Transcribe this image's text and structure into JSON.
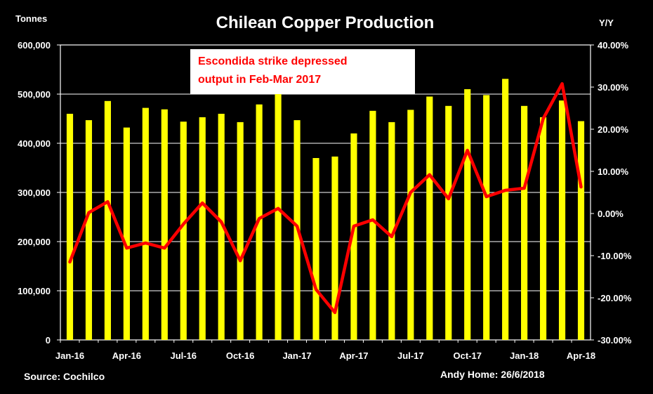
{
  "chart_data": {
    "type": "bar",
    "title": "Chilean Copper Production",
    "ylabel_left": "Tonnes",
    "ylabel_right": "Y/Y",
    "source": "Source: Cochilco",
    "credit": "Andy Home: 26/6/2018",
    "annotation": [
      "Escondida strike depressed",
      "output in Feb-Mar 2017"
    ],
    "x_tick_labels": [
      "Jan-16",
      "Apr-16",
      "Jul-16",
      "Oct-16",
      "Jan-17",
      "Apr-17",
      "Jul-17",
      "Oct-17",
      "Jan-18",
      "Apr-18"
    ],
    "y_left_ticks": [
      "0",
      "100,000",
      "200,000",
      "300,000",
      "400,000",
      "500,000",
      "600,000"
    ],
    "y_right_ticks": [
      "-30.00%",
      "-20.00%",
      "-10.00%",
      "0.00%",
      "10.00%",
      "20.00%",
      "30.00%",
      "40.00%"
    ],
    "ylim_left": [
      0,
      600000
    ],
    "ylim_right": [
      -30,
      40
    ],
    "categories": [
      "Jan-16",
      "Feb-16",
      "Mar-16",
      "Apr-16",
      "May-16",
      "Jun-16",
      "Jul-16",
      "Aug-16",
      "Sep-16",
      "Oct-16",
      "Nov-16",
      "Dec-16",
      "Jan-17",
      "Feb-17",
      "Mar-17",
      "Apr-17",
      "May-17",
      "Jun-17",
      "Jul-17",
      "Aug-17",
      "Sep-17",
      "Oct-17",
      "Nov-17",
      "Dec-17",
      "Jan-18",
      "Feb-18",
      "Mar-18",
      "Apr-18"
    ],
    "series": [
      {
        "type": "bar",
        "axis": "left",
        "color": "#ffff00",
        "values": [
          460000,
          447000,
          486000,
          432000,
          472000,
          469000,
          444000,
          453000,
          460000,
          443000,
          479000,
          502000,
          447000,
          370000,
          373000,
          420000,
          466000,
          443000,
          468000,
          495000,
          476000,
          510000,
          498000,
          531000,
          476000,
          453000,
          487000,
          445000
        ]
      },
      {
        "type": "line",
        "axis": "right",
        "color": "#ff0000",
        "values": [
          -11.5,
          0.2,
          2.8,
          -8.2,
          -7.0,
          -8.2,
          -2.5,
          2.5,
          -2.0,
          -11.2,
          -1.2,
          1.2,
          -3.0,
          -18.0,
          -23.5,
          -3.0,
          -1.5,
          -5.5,
          5.0,
          9.2,
          3.5,
          15.0,
          4.0,
          5.5,
          6.0,
          22.5,
          30.8,
          6.3
        ]
      }
    ]
  }
}
